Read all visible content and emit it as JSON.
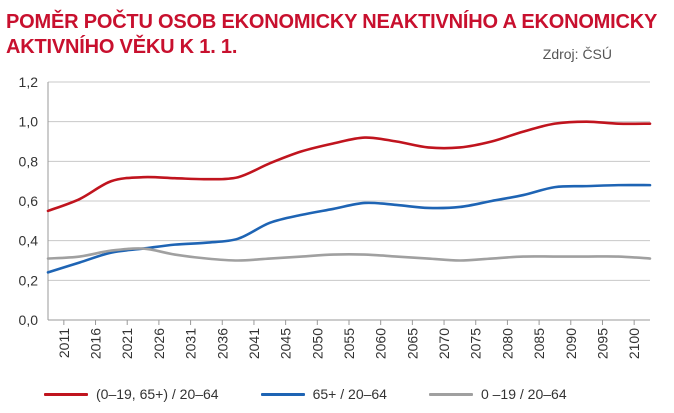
{
  "header": {
    "title_line1": "POMĚR POČTU OSOB EKONOMICKY NEAKTIVNÍHO A EKONOMICKY",
    "title_line2": "AKTIVNÍHO VĚKU K 1. 1.",
    "source": "Zdroj: ČSÚ"
  },
  "colors": {
    "title": "#c8102e",
    "series_red": "#c0141e",
    "series_blue": "#1e64b4",
    "series_gray": "#a0a0a0",
    "grid": "#c8c8c8"
  },
  "chart_data": {
    "type": "line",
    "xlabel": "",
    "ylabel": "",
    "ylim": [
      0,
      1.2
    ],
    "yticks": [
      "0,0",
      "0,2",
      "0,4",
      "0,6",
      "0,8",
      "1,0",
      "1,2"
    ],
    "xticks": [
      "2011",
      "2016",
      "2021",
      "2026",
      "2031",
      "2036",
      "2041",
      "2045",
      "2050",
      "2055",
      "2060",
      "2065",
      "2070",
      "2075",
      "2080",
      "2085",
      "2090",
      "2095",
      "2100"
    ],
    "grid": "horizontal",
    "legend_position": "bottom",
    "series": [
      {
        "name": "(0–19, 65+) / 20–64",
        "color": "#c0141e",
        "values": [
          0.55,
          0.61,
          0.7,
          0.72,
          0.715,
          0.71,
          0.72,
          0.79,
          0.85,
          0.89,
          0.92,
          0.9,
          0.87,
          0.87,
          0.9,
          0.95,
          0.99,
          1.0,
          0.99,
          0.99
        ]
      },
      {
        "name": "65+ / 20–64",
        "color": "#1e64b4",
        "values": [
          0.24,
          0.29,
          0.34,
          0.36,
          0.38,
          0.39,
          0.41,
          0.49,
          0.53,
          0.56,
          0.59,
          0.58,
          0.565,
          0.57,
          0.6,
          0.63,
          0.67,
          0.675,
          0.68,
          0.68
        ]
      },
      {
        "name": "0 –19 / 20–64",
        "color": "#a0a0a0",
        "values": [
          0.31,
          0.32,
          0.35,
          0.36,
          0.33,
          0.31,
          0.3,
          0.31,
          0.32,
          0.33,
          0.33,
          0.32,
          0.31,
          0.3,
          0.31,
          0.32,
          0.32,
          0.32,
          0.32,
          0.31
        ]
      }
    ]
  }
}
